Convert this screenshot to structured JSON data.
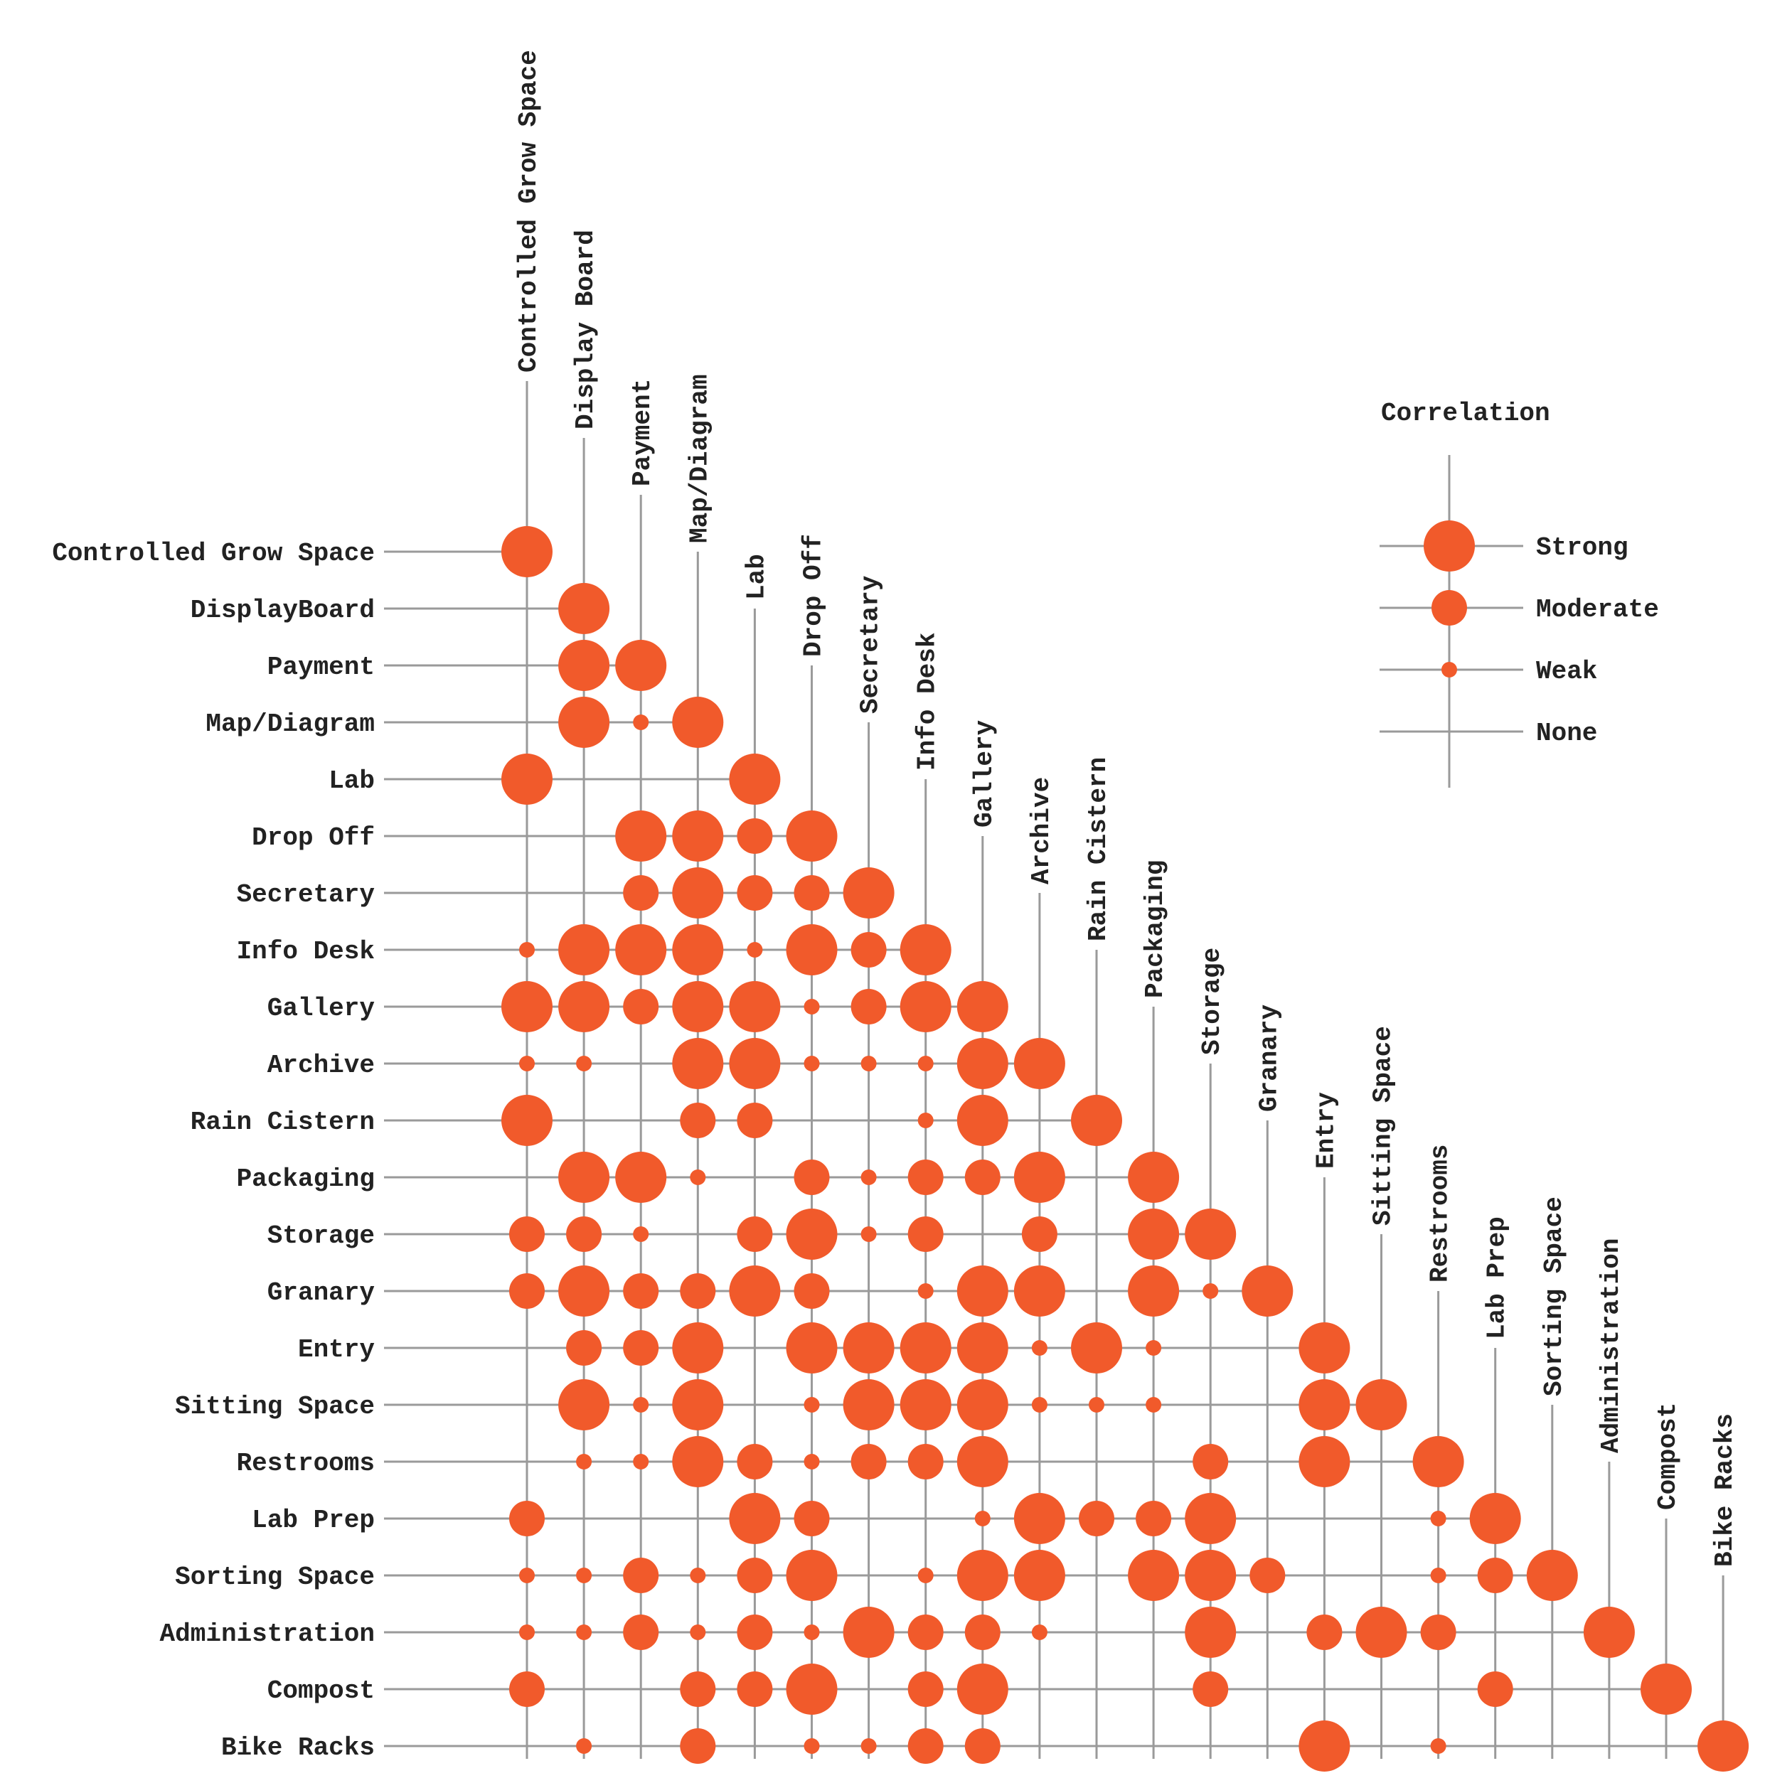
{
  "chart_data": {
    "type": "correlation-matrix",
    "row_labels": [
      "Controlled Grow Space",
      "DisplayBoard",
      "Payment",
      "Map/Diagram",
      "Lab",
      "Drop Off",
      "Secretary",
      "Info Desk",
      "Gallery",
      "Archive",
      "Rain Cistern",
      "Packaging",
      "Storage",
      "Granary",
      "Entry",
      "Sitting Space",
      "Restrooms",
      "Lab Prep",
      "Sorting Space",
      "Administration",
      "Compost",
      "Bike Racks"
    ],
    "col_labels": [
      "Controlled Grow Space",
      "Display Board",
      "Payment",
      "Map/Diagram",
      "Lab",
      "Drop Off",
      "Secretary",
      "Info Desk",
      "Gallery",
      "Archive",
      "Rain Cistern",
      "Packaging",
      "Storage",
      "Granary",
      "Entry",
      "Sitting Space",
      "Restrooms",
      "Lab Prep",
      "Sorting Space",
      "Administration",
      "Compost",
      "Bike Racks"
    ],
    "scale": {
      "0": "None",
      "1": "Weak",
      "2": "Moderate",
      "3": "Strong"
    },
    "matrix": [
      [
        3
      ],
      [
        0,
        3
      ],
      [
        0,
        3,
        3
      ],
      [
        0,
        3,
        1,
        3
      ],
      [
        3,
        0,
        0,
        0,
        3
      ],
      [
        0,
        0,
        3,
        3,
        2,
        3
      ],
      [
        0,
        0,
        2,
        3,
        2,
        2,
        3
      ],
      [
        1,
        3,
        3,
        3,
        1,
        3,
        2,
        3
      ],
      [
        3,
        3,
        2,
        3,
        3,
        1,
        2,
        3,
        3
      ],
      [
        1,
        1,
        0,
        3,
        3,
        1,
        1,
        1,
        3,
        3
      ],
      [
        3,
        0,
        0,
        2,
        2,
        0,
        0,
        1,
        3,
        0,
        3
      ],
      [
        0,
        3,
        3,
        1,
        0,
        2,
        1,
        2,
        2,
        3,
        0,
        3
      ],
      [
        2,
        2,
        1,
        0,
        2,
        3,
        1,
        2,
        0,
        2,
        0,
        3,
        3
      ],
      [
        2,
        3,
        2,
        2,
        3,
        2,
        0,
        1,
        3,
        3,
        0,
        3,
        1,
        3
      ],
      [
        0,
        2,
        2,
        3,
        0,
        3,
        3,
        3,
        3,
        1,
        3,
        1,
        0,
        0,
        3
      ],
      [
        0,
        3,
        1,
        3,
        0,
        1,
        3,
        3,
        3,
        1,
        1,
        1,
        0,
        0,
        3,
        3
      ],
      [
        0,
        1,
        1,
        3,
        2,
        1,
        2,
        2,
        3,
        0,
        0,
        0,
        2,
        0,
        3,
        0,
        3
      ],
      [
        2,
        0,
        0,
        0,
        3,
        2,
        0,
        0,
        1,
        3,
        2,
        2,
        3,
        0,
        0,
        0,
        1,
        3
      ],
      [
        1,
        1,
        2,
        1,
        2,
        3,
        0,
        1,
        3,
        3,
        0,
        3,
        3,
        2,
        0,
        0,
        1,
        2,
        3
      ],
      [
        1,
        1,
        2,
        1,
        2,
        1,
        3,
        2,
        2,
        1,
        0,
        0,
        3,
        0,
        2,
        3,
        2,
        0,
        0,
        3
      ],
      [
        2,
        0,
        0,
        2,
        2,
        3,
        0,
        2,
        3,
        0,
        0,
        0,
        2,
        0,
        0,
        0,
        0,
        2,
        0,
        0,
        3
      ],
      [
        0,
        1,
        0,
        2,
        0,
        1,
        1,
        2,
        2,
        0,
        0,
        0,
        0,
        0,
        3,
        0,
        1,
        0,
        0,
        0,
        0,
        3
      ]
    ],
    "colors": {
      "dot": "#f15a2b",
      "line": "#9a9a9a",
      "text": "#222222"
    }
  },
  "legend": {
    "title": "Correlation",
    "items": [
      {
        "label": "Strong",
        "level": 3
      },
      {
        "label": "Moderate",
        "level": 2
      },
      {
        "label": "Weak",
        "level": 1
      },
      {
        "label": "None",
        "level": 0
      }
    ]
  }
}
